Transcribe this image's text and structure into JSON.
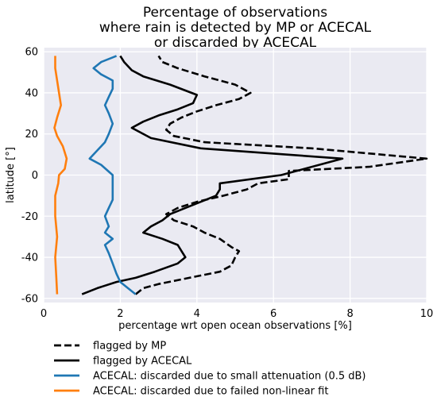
{
  "chart_data": {
    "type": "line",
    "title_lines": [
      "Percentage of observations",
      "where rain is detected by MP or ACECAL",
      "or discarded by ACECAL"
    ],
    "xlabel": "percentage wrt open ocean observations [%]",
    "ylabel": "latitude [°]",
    "xlim": [
      0,
      10
    ],
    "ylim": [
      -62,
      62
    ],
    "xticks": [
      0,
      2,
      4,
      6,
      8,
      10
    ],
    "yticks": [
      -60,
      -40,
      -20,
      0,
      20,
      40,
      60
    ],
    "grid": true,
    "legend_position": "bottom-below",
    "series": [
      {
        "name": "flagged by MP",
        "color": "#000000",
        "style": "dashed",
        "points": [
          [
            2.4,
            -58
          ],
          [
            2.6,
            -55
          ],
          [
            3.0,
            -53
          ],
          [
            3.8,
            -50
          ],
          [
            4.6,
            -47
          ],
          [
            4.9,
            -44
          ],
          [
            5.0,
            -40
          ],
          [
            5.1,
            -37
          ],
          [
            4.9,
            -35
          ],
          [
            4.6,
            -31
          ],
          [
            4.2,
            -28
          ],
          [
            3.9,
            -25
          ],
          [
            3.4,
            -22
          ],
          [
            3.2,
            -19
          ],
          [
            3.5,
            -16
          ],
          [
            4.0,
            -13
          ],
          [
            4.7,
            -10
          ],
          [
            5.3,
            -7
          ],
          [
            5.6,
            -4
          ],
          [
            6.4,
            -2
          ],
          [
            6.4,
            2
          ],
          [
            8.5,
            4
          ],
          [
            10.0,
            8
          ],
          [
            7.0,
            13
          ],
          [
            4.2,
            16
          ],
          [
            3.4,
            19
          ],
          [
            3.2,
            22
          ],
          [
            3.3,
            25
          ],
          [
            3.6,
            28
          ],
          [
            4.0,
            31
          ],
          [
            4.5,
            34
          ],
          [
            5.1,
            37
          ],
          [
            5.4,
            40
          ],
          [
            5.0,
            44
          ],
          [
            4.2,
            48
          ],
          [
            3.5,
            52
          ],
          [
            3.1,
            55
          ],
          [
            3.0,
            58
          ]
        ]
      },
      {
        "name": "flagged by ACECAL",
        "color": "#000000",
        "style": "solid",
        "points": [
          [
            1.0,
            -58
          ],
          [
            1.4,
            -55
          ],
          [
            1.9,
            -52
          ],
          [
            2.4,
            -50
          ],
          [
            2.9,
            -47
          ],
          [
            3.5,
            -43
          ],
          [
            3.7,
            -40
          ],
          [
            3.6,
            -37
          ],
          [
            3.5,
            -34
          ],
          [
            3.1,
            -31
          ],
          [
            2.6,
            -28
          ],
          [
            2.8,
            -25
          ],
          [
            3.1,
            -22
          ],
          [
            3.3,
            -19
          ],
          [
            3.7,
            -16
          ],
          [
            4.1,
            -13
          ],
          [
            4.5,
            -10
          ],
          [
            4.6,
            -7
          ],
          [
            4.6,
            -4
          ],
          [
            6.2,
            0
          ],
          [
            7.8,
            8
          ],
          [
            4.1,
            13
          ],
          [
            2.8,
            18
          ],
          [
            2.3,
            23
          ],
          [
            2.6,
            26
          ],
          [
            3.0,
            29
          ],
          [
            3.5,
            32
          ],
          [
            3.9,
            35
          ],
          [
            4.0,
            39
          ],
          [
            3.3,
            44
          ],
          [
            2.6,
            48
          ],
          [
            2.3,
            51
          ],
          [
            2.1,
            55
          ],
          [
            2.0,
            58
          ]
        ]
      },
      {
        "name": "ACECAL: discarded due to small attenuation (0.5 dB)",
        "color": "#1f77b4",
        "style": "solid",
        "points": [
          [
            2.4,
            -58
          ],
          [
            2.2,
            -55
          ],
          [
            2.0,
            -52
          ],
          [
            1.9,
            -48
          ],
          [
            1.8,
            -43
          ],
          [
            1.7,
            -38
          ],
          [
            1.6,
            -34
          ],
          [
            1.8,
            -31
          ],
          [
            1.6,
            -28
          ],
          [
            1.7,
            -25
          ],
          [
            1.6,
            -20
          ],
          [
            1.7,
            -16
          ],
          [
            1.8,
            -12
          ],
          [
            1.8,
            -8
          ],
          [
            1.8,
            -4
          ],
          [
            1.8,
            0
          ],
          [
            1.5,
            5
          ],
          [
            1.2,
            8
          ],
          [
            1.4,
            12
          ],
          [
            1.6,
            16
          ],
          [
            1.7,
            20
          ],
          [
            1.8,
            25
          ],
          [
            1.7,
            30
          ],
          [
            1.6,
            34
          ],
          [
            1.7,
            38
          ],
          [
            1.8,
            42
          ],
          [
            1.8,
            46
          ],
          [
            1.5,
            49
          ],
          [
            1.3,
            52
          ],
          [
            1.5,
            55
          ],
          [
            1.9,
            58
          ]
        ]
      },
      {
        "name": "ACECAL: discarded due to failed non-linear fit",
        "color": "#ff7f0e",
        "style": "solid",
        "points": [
          [
            0.35,
            -58
          ],
          [
            0.33,
            -50
          ],
          [
            0.3,
            -40
          ],
          [
            0.35,
            -30
          ],
          [
            0.3,
            -20
          ],
          [
            0.3,
            -10
          ],
          [
            0.38,
            -4
          ],
          [
            0.4,
            0
          ],
          [
            0.55,
            3
          ],
          [
            0.6,
            8
          ],
          [
            0.5,
            14
          ],
          [
            0.35,
            19
          ],
          [
            0.28,
            23
          ],
          [
            0.35,
            28
          ],
          [
            0.45,
            34
          ],
          [
            0.4,
            40
          ],
          [
            0.35,
            46
          ],
          [
            0.3,
            52
          ],
          [
            0.3,
            58
          ]
        ]
      }
    ]
  }
}
